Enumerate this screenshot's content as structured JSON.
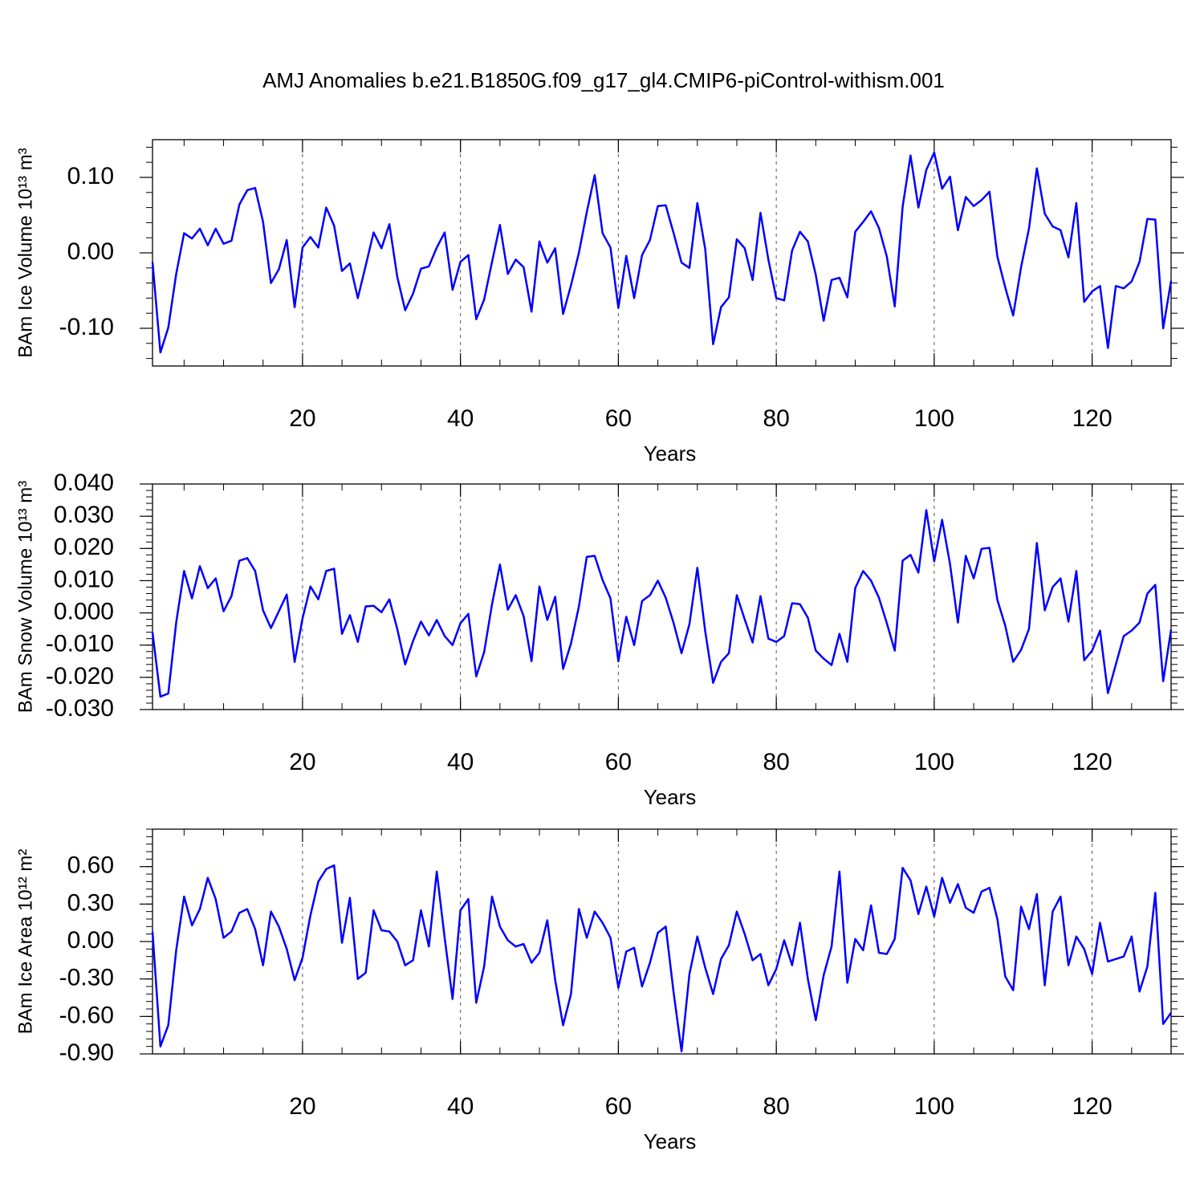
{
  "title": "AMJ Anomalies b.e21.B1850G.f09_g17_gl4.CMIP6-piControl-withism.001",
  "chart_data": [
    {
      "type": "line",
      "xlabel": "Years",
      "ylabel": "BAm Ice Volume 10¹³ m³",
      "xlim": [
        1,
        130
      ],
      "xticks": [
        20,
        40,
        60,
        80,
        100,
        120
      ],
      "grid": true,
      "ylim": [
        -0.15,
        0.15
      ],
      "yticks": [
        {
          "value": -0.1,
          "label": "-0.10"
        },
        {
          "value": 0,
          "label": "0.00"
        },
        {
          "value": 0.1,
          "label": "0.10"
        }
      ],
      "x": [
        1,
        2,
        3,
        4,
        5,
        6,
        7,
        8,
        9,
        10,
        11,
        12,
        13,
        14,
        15,
        16,
        17,
        18,
        19,
        20,
        21,
        22,
        23,
        24,
        25,
        26,
        27,
        28,
        29,
        30,
        31,
        32,
        33,
        34,
        35,
        36,
        37,
        38,
        39,
        40,
        41,
        42,
        43,
        44,
        45,
        46,
        47,
        48,
        49,
        50,
        51,
        52,
        53,
        54,
        55,
        56,
        57,
        58,
        59,
        60,
        61,
        62,
        63,
        64,
        65,
        66,
        67,
        68,
        69,
        70,
        71,
        72,
        73,
        74,
        75,
        76,
        77,
        78,
        79,
        80,
        81,
        82,
        83,
        84,
        85,
        86,
        87,
        88,
        89,
        90,
        91,
        92,
        93,
        94,
        95,
        96,
        97,
        98,
        99,
        100,
        101,
        102,
        103,
        104,
        105,
        106,
        107,
        108,
        109,
        110,
        111,
        112,
        113,
        114,
        115,
        116,
        117,
        118,
        119,
        120,
        121,
        122,
        123,
        124,
        125,
        126,
        127,
        128,
        129,
        130
      ],
      "series": [
        {
          "color": "#0000ff",
          "values": [
            -0.012,
            -0.132,
            -0.099,
            -0.028,
            0.026,
            0.019,
            0.032,
            0.01,
            0.032,
            0.012,
            0.016,
            0.064,
            0.083,
            0.086,
            0.041,
            -0.04,
            -0.022,
            0.017,
            -0.072,
            0.007,
            0.021,
            0.007,
            0.06,
            0.036,
            -0.024,
            -0.014,
            -0.06,
            -0.017,
            0.027,
            0.006,
            0.038,
            -0.032,
            -0.076,
            -0.054,
            -0.021,
            -0.018,
            0.007,
            0.027,
            -0.049,
            -0.012,
            -0.003,
            -0.088,
            -0.062,
            -0.012,
            0.037,
            -0.028,
            -0.009,
            -0.019,
            -0.078,
            0.015,
            -0.013,
            0.006,
            -0.081,
            -0.043,
            0.0,
            0.054,
            0.103,
            0.026,
            0.007,
            -0.073,
            -0.004,
            -0.06,
            -0.003,
            0.017,
            0.062,
            0.063,
            0.026,
            -0.013,
            -0.02,
            0.066,
            0.005,
            -0.121,
            -0.072,
            -0.059,
            0.018,
            0.006,
            -0.036,
            0.053,
            -0.009,
            -0.06,
            -0.063,
            0.003,
            0.028,
            0.015,
            -0.029,
            -0.09,
            -0.036,
            -0.033,
            -0.059,
            0.028,
            0.041,
            0.055,
            0.033,
            -0.005,
            -0.071,
            0.061,
            0.129,
            0.06,
            0.11,
            0.133,
            0.085,
            0.101,
            0.03,
            0.074,
            0.062,
            0.07,
            0.081,
            -0.005,
            -0.046,
            -0.083,
            -0.019,
            0.032,
            0.112,
            0.052,
            0.035,
            0.03,
            -0.006,
            0.066,
            -0.065,
            -0.051,
            -0.044,
            -0.126,
            -0.044,
            -0.047,
            -0.038,
            -0.012,
            0.045,
            0.044,
            -0.1,
            -0.037
          ]
        }
      ]
    },
    {
      "type": "line",
      "xlabel": "Years",
      "ylabel": "BAm Snow Volume 10¹³ m³",
      "xlim": [
        1,
        130
      ],
      "xticks": [
        20,
        40,
        60,
        80,
        100,
        120
      ],
      "grid": true,
      "ylim": [
        -0.03,
        0.04
      ],
      "yticks": [
        {
          "value": -0.03,
          "label": "-0.030"
        },
        {
          "value": -0.02,
          "label": "-0.020"
        },
        {
          "value": -0.01,
          "label": "-0.010"
        },
        {
          "value": 0,
          "label": "0.000"
        },
        {
          "value": 0.01,
          "label": "0.010"
        },
        {
          "value": 0.02,
          "label": "0.020"
        },
        {
          "value": 0.03,
          "label": "0.030"
        },
        {
          "value": 0.04,
          "label": "0.040"
        }
      ],
      "x": [
        1,
        2,
        3,
        4,
        5,
        6,
        7,
        8,
        9,
        10,
        11,
        12,
        13,
        14,
        15,
        16,
        17,
        18,
        19,
        20,
        21,
        22,
        23,
        24,
        25,
        26,
        27,
        28,
        29,
        30,
        31,
        32,
        33,
        34,
        35,
        36,
        37,
        38,
        39,
        40,
        41,
        42,
        43,
        44,
        45,
        46,
        47,
        48,
        49,
        50,
        51,
        52,
        53,
        54,
        55,
        56,
        57,
        58,
        59,
        60,
        61,
        62,
        63,
        64,
        65,
        66,
        67,
        68,
        69,
        70,
        71,
        72,
        73,
        74,
        75,
        76,
        77,
        78,
        79,
        80,
        81,
        82,
        83,
        84,
        85,
        86,
        87,
        88,
        89,
        90,
        91,
        92,
        93,
        94,
        95,
        96,
        97,
        98,
        99,
        100,
        101,
        102,
        103,
        104,
        105,
        106,
        107,
        108,
        109,
        110,
        111,
        112,
        113,
        114,
        115,
        116,
        117,
        118,
        119,
        120,
        121,
        122,
        123,
        124,
        125,
        126,
        127,
        128,
        129,
        130
      ],
      "series": [
        {
          "color": "#0000ff",
          "values": [
            -0.006,
            -0.026,
            -0.025,
            -0.003,
            0.013,
            0.0045,
            0.0145,
            0.0077,
            0.0107,
            0.0005,
            0.0052,
            0.0162,
            0.017,
            0.013,
            0.0008,
            -0.0047,
            0.0005,
            0.0057,
            -0.0152,
            -0.0017,
            0.0082,
            0.0042,
            0.013,
            0.0137,
            -0.0065,
            -0.0007,
            -0.009,
            0.002,
            0.0022,
            0.0002,
            0.0042,
            -0.005,
            -0.016,
            -0.0087,
            -0.0027,
            -0.007,
            -0.0022,
            -0.0072,
            -0.01,
            -0.0032,
            -0.0003,
            -0.0197,
            -0.0122,
            0.0027,
            0.015,
            0.001,
            0.0055,
            -0.001,
            -0.015,
            0.0082,
            -0.0022,
            0.005,
            -0.0174,
            -0.0095,
            0.002,
            0.0174,
            0.0177,
            0.0102,
            0.0045,
            -0.015,
            -0.0012,
            -0.01,
            0.0037,
            0.0055,
            0.01,
            0.0047,
            -0.0032,
            -0.0125,
            -0.0035,
            0.014,
            -0.0057,
            -0.0217,
            -0.0152,
            -0.0125,
            0.0055,
            -0.002,
            -0.0092,
            0.0052,
            -0.008,
            -0.009,
            -0.0072,
            0.003,
            0.0027,
            -0.0015,
            -0.0117,
            -0.0142,
            -0.0162,
            -0.0065,
            -0.0152,
            0.0077,
            0.013,
            0.01,
            0.0047,
            -0.0032,
            -0.0117,
            0.0162,
            0.018,
            0.0125,
            0.0319,
            0.016,
            0.0289,
            0.0152,
            -0.003,
            0.0177,
            0.0107,
            0.0199,
            0.0202,
            0.004,
            -0.004,
            -0.0152,
            -0.0115,
            -0.005,
            0.0217,
            0.0008,
            0.008,
            0.0107,
            -0.0027,
            0.013,
            -0.0147,
            -0.0117,
            -0.0055,
            -0.0249,
            -0.016,
            -0.0072,
            -0.0055,
            -0.003,
            0.006,
            0.0087,
            -0.0212,
            -0.0052
          ]
        }
      ]
    },
    {
      "type": "line",
      "xlabel": "Years",
      "ylabel": "BAm Ice Area 10¹² m²",
      "xlim": [
        1,
        130
      ],
      "xticks": [
        20,
        40,
        60,
        80,
        100,
        120
      ],
      "grid": true,
      "ylim": [
        -0.9,
        0.9
      ],
      "yticks": [
        {
          "value": -0.9,
          "label": "-0.90"
        },
        {
          "value": -0.6,
          "label": "-0.60"
        },
        {
          "value": -0.3,
          "label": "-0.30"
        },
        {
          "value": 0,
          "label": "0.00"
        },
        {
          "value": 0.3,
          "label": "0.30"
        },
        {
          "value": 0.6,
          "label": "0.60"
        }
      ],
      "x": [
        1,
        2,
        3,
        4,
        5,
        6,
        7,
        8,
        9,
        10,
        11,
        12,
        13,
        14,
        15,
        16,
        17,
        18,
        19,
        20,
        21,
        22,
        23,
        24,
        25,
        26,
        27,
        28,
        29,
        30,
        31,
        32,
        33,
        34,
        35,
        36,
        37,
        38,
        39,
        40,
        41,
        42,
        43,
        44,
        45,
        46,
        47,
        48,
        49,
        50,
        51,
        52,
        53,
        54,
        55,
        56,
        57,
        58,
        59,
        60,
        61,
        62,
        63,
        64,
        65,
        66,
        67,
        68,
        69,
        70,
        71,
        72,
        73,
        74,
        75,
        76,
        77,
        78,
        79,
        80,
        81,
        82,
        83,
        84,
        85,
        86,
        87,
        88,
        89,
        90,
        91,
        92,
        93,
        94,
        95,
        96,
        97,
        98,
        99,
        100,
        101,
        102,
        103,
        104,
        105,
        106,
        107,
        108,
        109,
        110,
        111,
        112,
        113,
        114,
        115,
        116,
        117,
        118,
        119,
        120,
        121,
        122,
        123,
        124,
        125,
        126,
        127,
        128,
        129,
        130
      ],
      "series": [
        {
          "color": "#0000ff",
          "values": [
            0.08,
            -0.84,
            -0.67,
            -0.07,
            0.36,
            0.13,
            0.26,
            0.51,
            0.34,
            0.03,
            0.08,
            0.23,
            0.26,
            0.1,
            -0.19,
            0.24,
            0.12,
            -0.06,
            -0.31,
            -0.13,
            0.21,
            0.48,
            0.58,
            0.61,
            -0.01,
            0.35,
            -0.3,
            -0.25,
            0.25,
            0.09,
            0.08,
            0.0,
            -0.19,
            -0.15,
            0.25,
            -0.04,
            0.56,
            0.03,
            -0.46,
            0.25,
            0.34,
            -0.49,
            -0.2,
            0.36,
            0.12,
            0.01,
            -0.04,
            -0.02,
            -0.17,
            -0.09,
            0.17,
            -0.31,
            -0.67,
            -0.42,
            0.26,
            0.03,
            0.24,
            0.15,
            0.03,
            -0.37,
            -0.08,
            -0.05,
            -0.36,
            -0.17,
            0.07,
            0.12,
            -0.41,
            -0.88,
            -0.26,
            0.04,
            -0.21,
            -0.42,
            -0.14,
            -0.03,
            0.24,
            0.06,
            -0.15,
            -0.1,
            -0.35,
            -0.22,
            0.01,
            -0.19,
            0.15,
            -0.3,
            -0.63,
            -0.27,
            -0.04,
            0.56,
            -0.33,
            0.02,
            -0.07,
            0.29,
            -0.09,
            -0.1,
            0.02,
            0.59,
            0.49,
            0.22,
            0.44,
            0.2,
            0.51,
            0.31,
            0.46,
            0.27,
            0.23,
            0.4,
            0.43,
            0.18,
            -0.28,
            -0.39,
            0.28,
            0.1,
            0.38,
            -0.35,
            0.24,
            0.36,
            -0.19,
            0.04,
            -0.06,
            -0.26,
            0.15,
            -0.16,
            -0.14,
            -0.12,
            0.04,
            -0.4,
            -0.2,
            0.39,
            -0.66,
            -0.57
          ]
        }
      ]
    }
  ]
}
